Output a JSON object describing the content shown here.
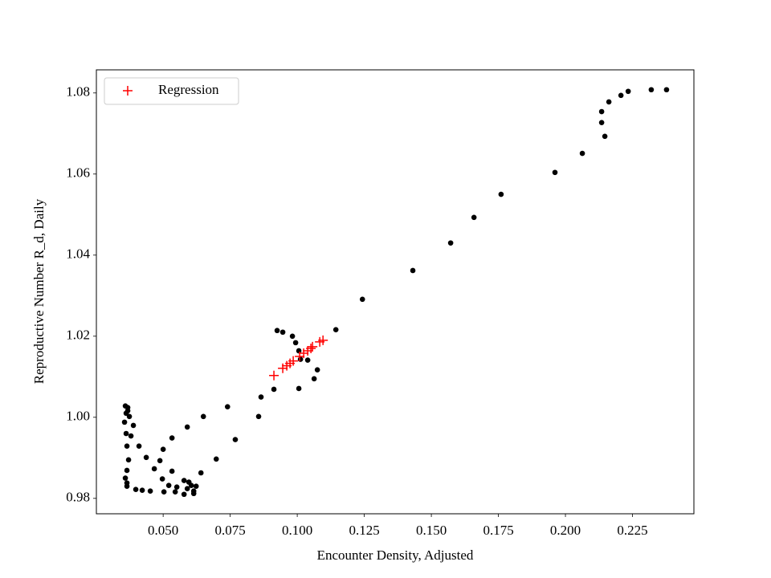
{
  "chart_data": {
    "type": "scatter",
    "x_label": "Encounter Density, Adjusted",
    "y_label": "Reproductive Number R_d, Daily",
    "xlim": [
      0.0251,
      0.2479
    ],
    "ylim": [
      0.9762,
      1.0857
    ],
    "xticks": [
      {
        "value": 0.05,
        "label": "0.050"
      },
      0.075,
      {
        "value": 0.1,
        "label": "0.100"
      },
      0.125,
      {
        "value": 0.15,
        "label": "0.150"
      },
      0.175,
      {
        "value": 0.2,
        "label": "0.200"
      },
      0.225
    ],
    "yticks": [
      0.98,
      {
        "value": 1.0,
        "label": "1.00"
      },
      1.02,
      1.04,
      1.06,
      1.08
    ],
    "grid": false,
    "legend": "upper left",
    "series": [
      {
        "color": "#000000",
        "marker": "o",
        "x": [
          0.2377,
          0.232,
          0.2234,
          0.2207,
          0.2162,
          0.2135,
          0.2135,
          0.2147,
          0.2063,
          0.1961,
          0.176,
          0.1659,
          0.1572,
          0.1431,
          0.1243,
          0.1144,
          0.0925,
          0.0946,
          0.0982,
          0.0994,
          0.1006,
          0.1012,
          0.1039,
          0.1075,
          0.1063,
          0.0913,
          0.1006,
          0.0865,
          0.0856,
          0.074,
          0.0769,
          0.065,
          0.059,
          0.0533,
          0.05,
          0.041,
          0.0437,
          0.0488,
          0.0467,
          0.0698,
          0.0641,
          0.0533,
          0.0497,
          0.0578,
          0.0596,
          0.0521,
          0.0551,
          0.0623,
          0.0605,
          0.059,
          0.0614,
          0.0545,
          0.0503,
          0.0578,
          0.0614,
          0.0452,
          0.0422,
          0.0398,
          0.0365,
          0.0365,
          0.0359,
          0.0365,
          0.0371,
          0.0365,
          0.038,
          0.0389,
          0.0362,
          0.0356,
          0.0374,
          0.0368,
          0.0362,
          0.0359,
          0.0368
        ],
        "values": [
          1.0808,
          1.0808,
          1.0804,
          1.0794,
          1.0778,
          1.0754,
          1.0727,
          1.0693,
          1.0651,
          1.0604,
          1.055,
          1.0493,
          1.043,
          1.0362,
          1.0291,
          1.0216,
          1.0214,
          1.021,
          1.02,
          1.0184,
          1.0164,
          1.0143,
          1.0141,
          1.0117,
          1.0095,
          1.0069,
          1.0071,
          1.005,
          1.0002,
          1.0026,
          0.9945,
          1.0002,
          0.9976,
          0.9949,
          0.9921,
          0.9929,
          0.9901,
          0.9893,
          0.9873,
          0.9897,
          0.9863,
          0.9867,
          0.9848,
          0.9844,
          0.984,
          0.9832,
          0.9828,
          0.983,
          0.9832,
          0.9824,
          0.9818,
          0.9816,
          0.9816,
          0.981,
          0.9812,
          0.9818,
          0.982,
          0.9822,
          0.983,
          0.9838,
          0.985,
          0.9869,
          0.9895,
          0.9929,
          0.9954,
          0.998,
          0.996,
          0.9988,
          1.0002,
          1.0016,
          1.001,
          1.0028,
          1.0024
        ]
      },
      {
        "name": "Regression",
        "color": "#ff0000",
        "marker": "+",
        "x": [
          0.0913,
          0.0946,
          0.0961,
          0.0973,
          0.0985,
          0.1009,
          0.1024,
          0.1039,
          0.1051,
          0.1057,
          0.1084,
          0.1096
        ],
        "values": [
          1.0103,
          1.0121,
          1.0127,
          1.0133,
          1.0139,
          1.015,
          1.0158,
          1.0164,
          1.017,
          1.0174,
          1.0186,
          1.019
        ]
      }
    ]
  }
}
